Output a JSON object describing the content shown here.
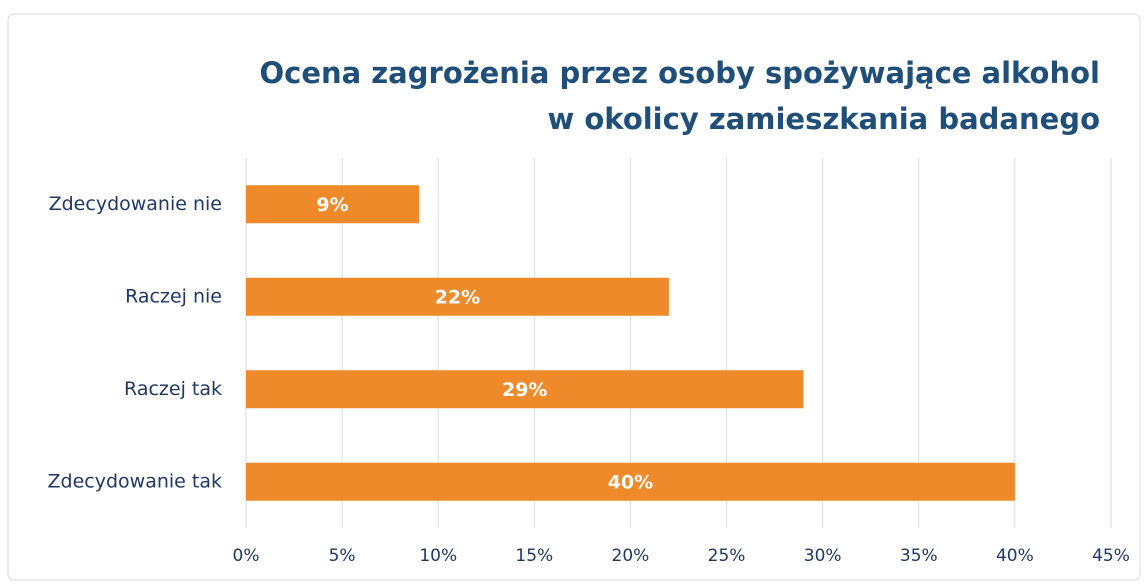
{
  "chart_data": {
    "type": "barh",
    "title": [
      "Ocena zagrożenia przez osoby spożywające alkohol",
      "w okolicy zamieszkania badanego"
    ],
    "categories": [
      "Zdecydowanie nie",
      "Raczej nie",
      "Raczej tak",
      "Zdecydowanie tak"
    ],
    "values": [
      9,
      22,
      29,
      40
    ],
    "value_labels": [
      "9%",
      "22%",
      "29%",
      "40%"
    ],
    "color": "#ee8a2a",
    "xlim": [
      0,
      45
    ],
    "xticks": [
      {
        "value": 0,
        "label": "0%"
      },
      {
        "value": 5,
        "label": "5%"
      },
      {
        "value": 10,
        "label": "10%"
      },
      {
        "value": 15,
        "label": "15%"
      },
      {
        "value": 20,
        "label": "20%"
      },
      {
        "value": 25,
        "label": "25%"
      },
      {
        "value": 30,
        "label": "30%"
      },
      {
        "value": 35,
        "label": "35%"
      },
      {
        "value": 40,
        "label": "40%"
      },
      {
        "value": 45,
        "label": "45%"
      }
    ],
    "grid": true
  }
}
